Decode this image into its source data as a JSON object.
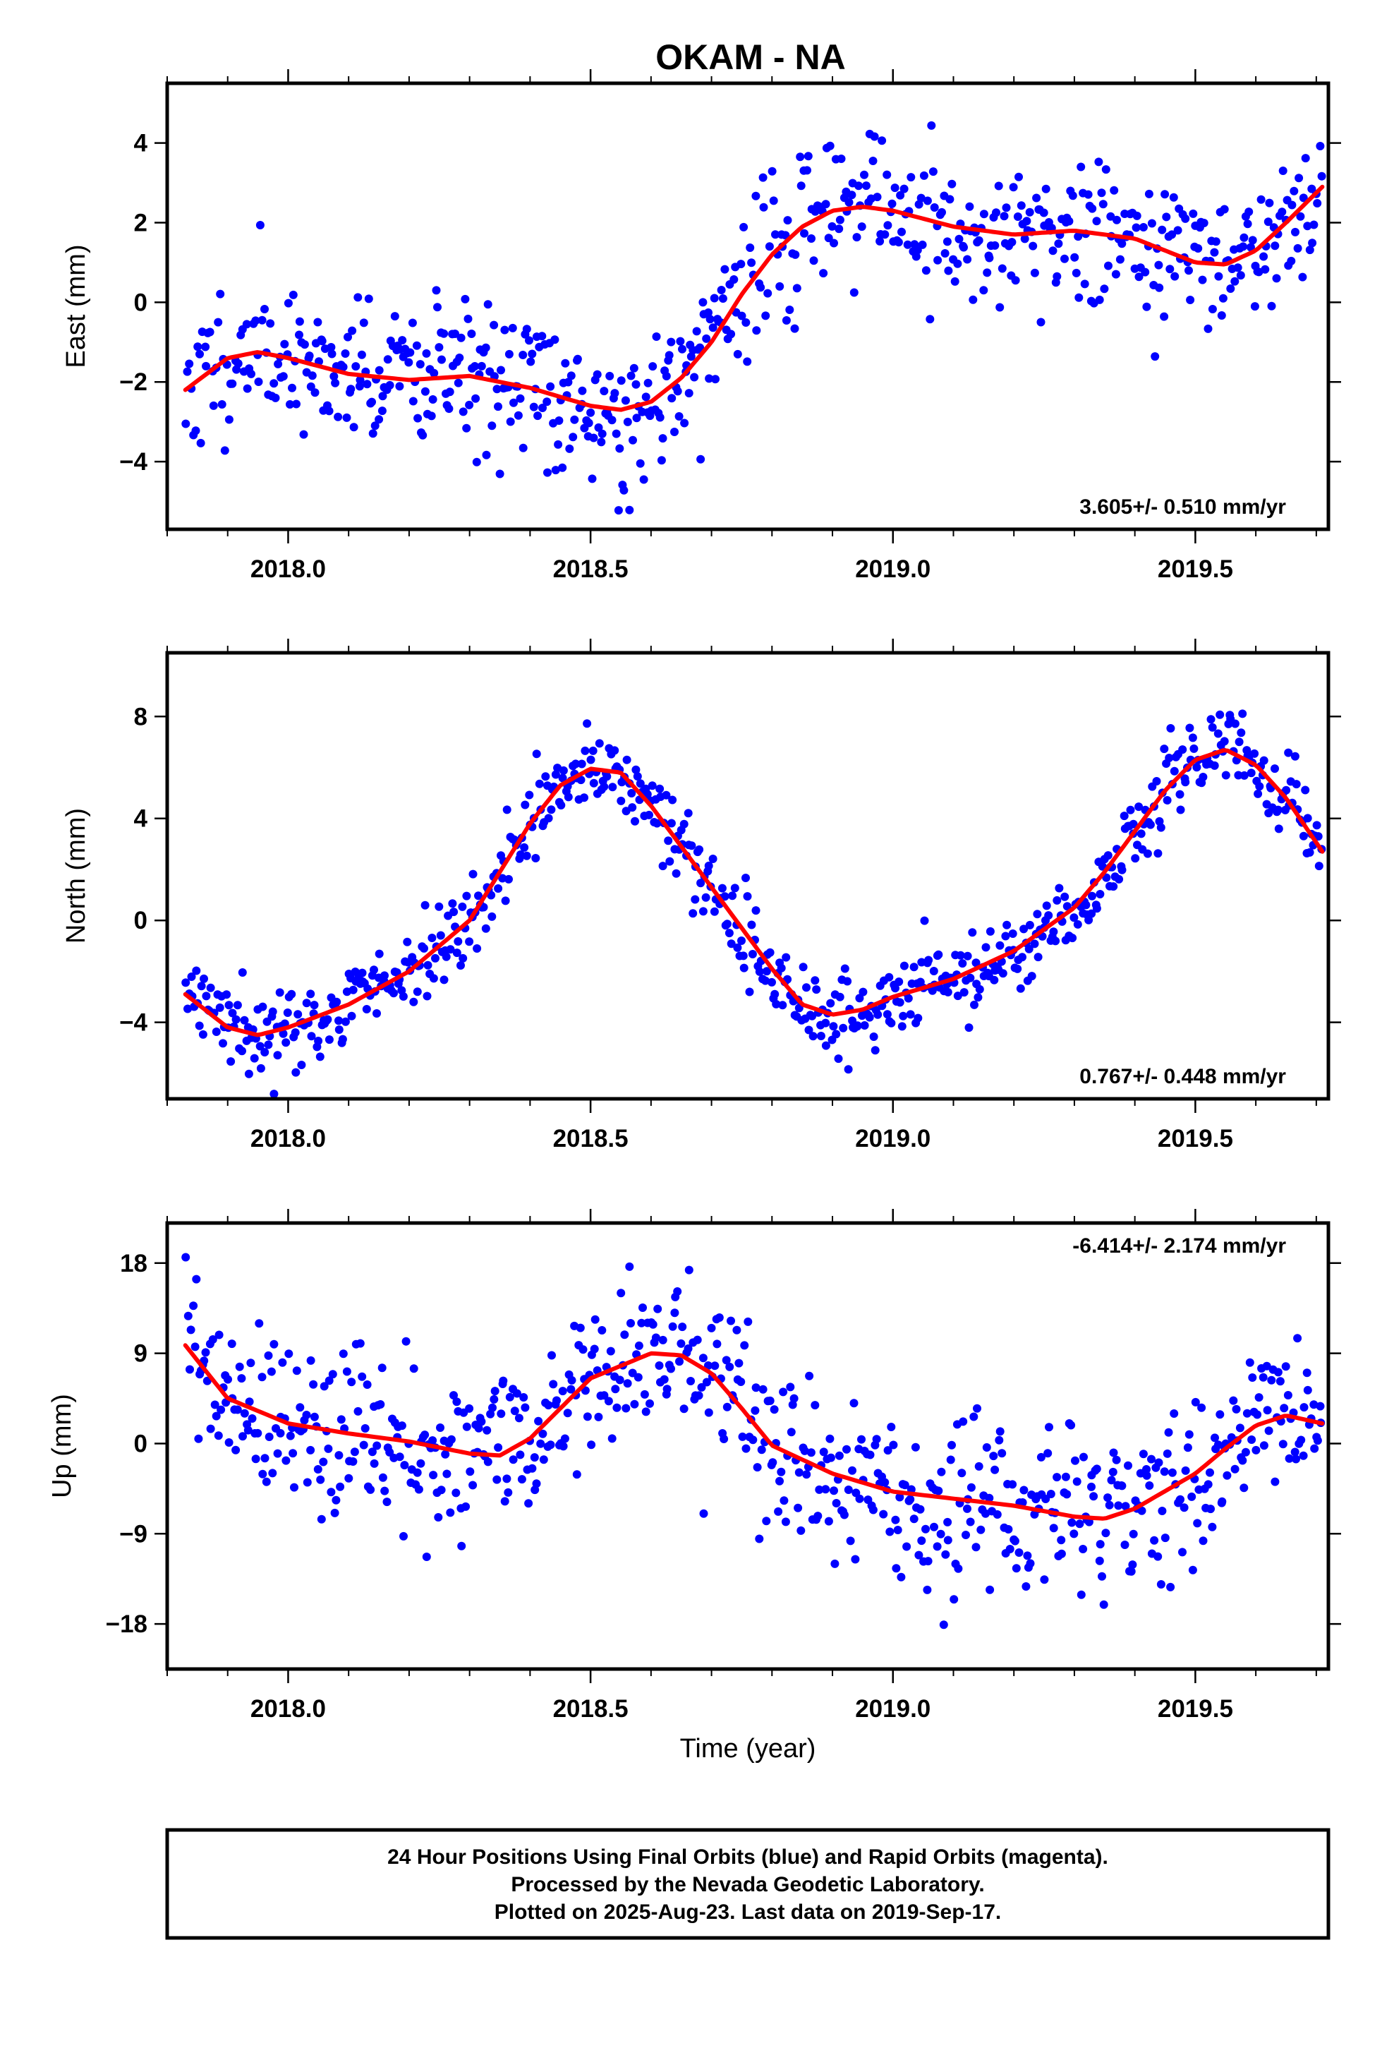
{
  "title": "OKAM - NA",
  "xlabel": "Time (year)",
  "caption": {
    "lines": [
      "24 Hour Positions Using Final Orbits (blue) and Rapid Orbits (magenta).",
      "Processed by the Nevada Geodetic Laboratory.",
      "Plotted on 2025-Aug-23. Last data on 2019-Sep-17."
    ]
  },
  "colors": {
    "points": "#0000ff",
    "fit": "#ff0000",
    "frame": "#000000"
  },
  "chart_data": [
    {
      "type": "scatter",
      "id": "east",
      "ylabel": "East (mm)",
      "xlim": [
        2017.8,
        2019.72
      ],
      "ylim": [
        -5.7,
        5.5
      ],
      "xticks": [
        2018.0,
        2018.5,
        2019.0,
        2019.5
      ],
      "xtick_labels": [
        "2018.0",
        "2018.5",
        "2019.0",
        "2019.5"
      ],
      "yticks": [
        -4,
        -2,
        0,
        2,
        4
      ],
      "ytick_labels": [
        "−4",
        "−2",
        "0",
        "2",
        "4"
      ],
      "rate_text": "3.605+/- 0.510 mm/yr",
      "rate_position": "bottom-right",
      "fit": {
        "x": [
          2017.83,
          2017.9,
          2017.95,
          2018.0,
          2018.1,
          2018.2,
          2018.3,
          2018.4,
          2018.5,
          2018.55,
          2018.6,
          2018.65,
          2018.7,
          2018.75,
          2018.8,
          2018.85,
          2018.9,
          2018.95,
          2019.0,
          2019.1,
          2019.2,
          2019.3,
          2019.4,
          2019.5,
          2019.55,
          2019.6,
          2019.65,
          2019.71
        ],
        "y": [
          -2.2,
          -1.4,
          -1.25,
          -1.4,
          -1.8,
          -1.95,
          -1.85,
          -2.15,
          -2.6,
          -2.7,
          -2.5,
          -1.9,
          -1.0,
          0.2,
          1.2,
          1.9,
          2.3,
          2.4,
          2.3,
          1.9,
          1.7,
          1.8,
          1.6,
          1.0,
          0.95,
          1.3,
          2.0,
          2.9
        ]
      },
      "segments": [
        {
          "x0": 2017.83,
          "x1": 2018.0,
          "n": 55,
          "seed": 11,
          "noise": 0.9
        },
        {
          "x0": 2018.0,
          "x1": 2018.74,
          "n": 280,
          "seed": 12,
          "noise": 1.0
        },
        {
          "x0": 2018.74,
          "x1": 2019.0,
          "n": 85,
          "seed": 13,
          "noise": 1.0
        },
        {
          "x0": 2019.0,
          "x1": 2019.71,
          "n": 250,
          "seed": 14,
          "noise": 0.85
        }
      ]
    },
    {
      "type": "scatter",
      "id": "north",
      "ylabel": "North (mm)",
      "xlim": [
        2017.8,
        2019.72
      ],
      "ylim": [
        -7.0,
        10.5
      ],
      "xticks": [
        2018.0,
        2018.5,
        2019.0,
        2019.5
      ],
      "xtick_labels": [
        "2018.0",
        "2018.5",
        "2019.0",
        "2019.5"
      ],
      "yticks": [
        -4,
        0,
        4,
        8
      ],
      "ytick_labels": [
        "−4",
        "0",
        "4",
        "8"
      ],
      "rate_text": "0.767+/- 0.448 mm/yr",
      "rate_position": "bottom-right",
      "fit": {
        "x": [
          2017.83,
          2017.9,
          2017.95,
          2018.0,
          2018.1,
          2018.2,
          2018.3,
          2018.35,
          2018.4,
          2018.45,
          2018.5,
          2018.55,
          2018.6,
          2018.7,
          2018.8,
          2018.85,
          2018.9,
          2018.95,
          2019.0,
          2019.1,
          2019.2,
          2019.3,
          2019.35,
          2019.4,
          2019.45,
          2019.5,
          2019.55,
          2019.6,
          2019.65,
          2019.71
        ],
        "y": [
          -2.9,
          -4.2,
          -4.5,
          -4.2,
          -3.3,
          -2.0,
          0.0,
          1.9,
          3.8,
          5.3,
          5.95,
          5.8,
          4.5,
          1.3,
          -1.9,
          -3.3,
          -3.7,
          -3.5,
          -3.0,
          -2.3,
          -1.2,
          0.5,
          1.9,
          3.5,
          5.1,
          6.3,
          6.7,
          6.1,
          4.8,
          2.7
        ]
      },
      "segments": [
        {
          "x0": 2017.83,
          "x1": 2019.71,
          "n": 680,
          "seed": 21,
          "noise": 0.8
        }
      ]
    },
    {
      "type": "scatter",
      "id": "up",
      "ylabel": "Up (mm)",
      "xlim": [
        2017.8,
        2019.72
      ],
      "ylim": [
        -22.5,
        22.0
      ],
      "xticks": [
        2018.0,
        2018.5,
        2019.0,
        2019.5
      ],
      "xtick_labels": [
        "2018.0",
        "2018.5",
        "2019.0",
        "2019.5"
      ],
      "yticks": [
        -18,
        -9,
        0,
        9,
        18
      ],
      "ytick_labels": [
        "−18",
        "−9",
        "0",
        "9",
        "18"
      ],
      "rate_text": "-6.414+/- 2.174 mm/yr",
      "rate_position": "top-right",
      "fit": {
        "x": [
          2017.83,
          2017.9,
          2018.0,
          2018.1,
          2018.2,
          2018.3,
          2018.35,
          2018.4,
          2018.45,
          2018.5,
          2018.6,
          2018.65,
          2018.7,
          2018.75,
          2018.8,
          2018.9,
          2019.0,
          2019.1,
          2019.2,
          2019.3,
          2019.35,
          2019.4,
          2019.5,
          2019.55,
          2019.6,
          2019.65,
          2019.71
        ],
        "y": [
          9.8,
          4.5,
          2.0,
          1.0,
          0.2,
          -1.0,
          -1.2,
          0.5,
          3.5,
          6.5,
          9.0,
          8.8,
          7.0,
          3.5,
          -0.2,
          -3.0,
          -4.8,
          -5.5,
          -6.2,
          -7.3,
          -7.5,
          -6.5,
          -3.0,
          -0.5,
          1.8,
          2.8,
          2.0
        ]
      },
      "segments": [
        {
          "x0": 2017.83,
          "x1": 2019.71,
          "n": 680,
          "seed": 31,
          "noise": 4.2
        }
      ]
    }
  ]
}
